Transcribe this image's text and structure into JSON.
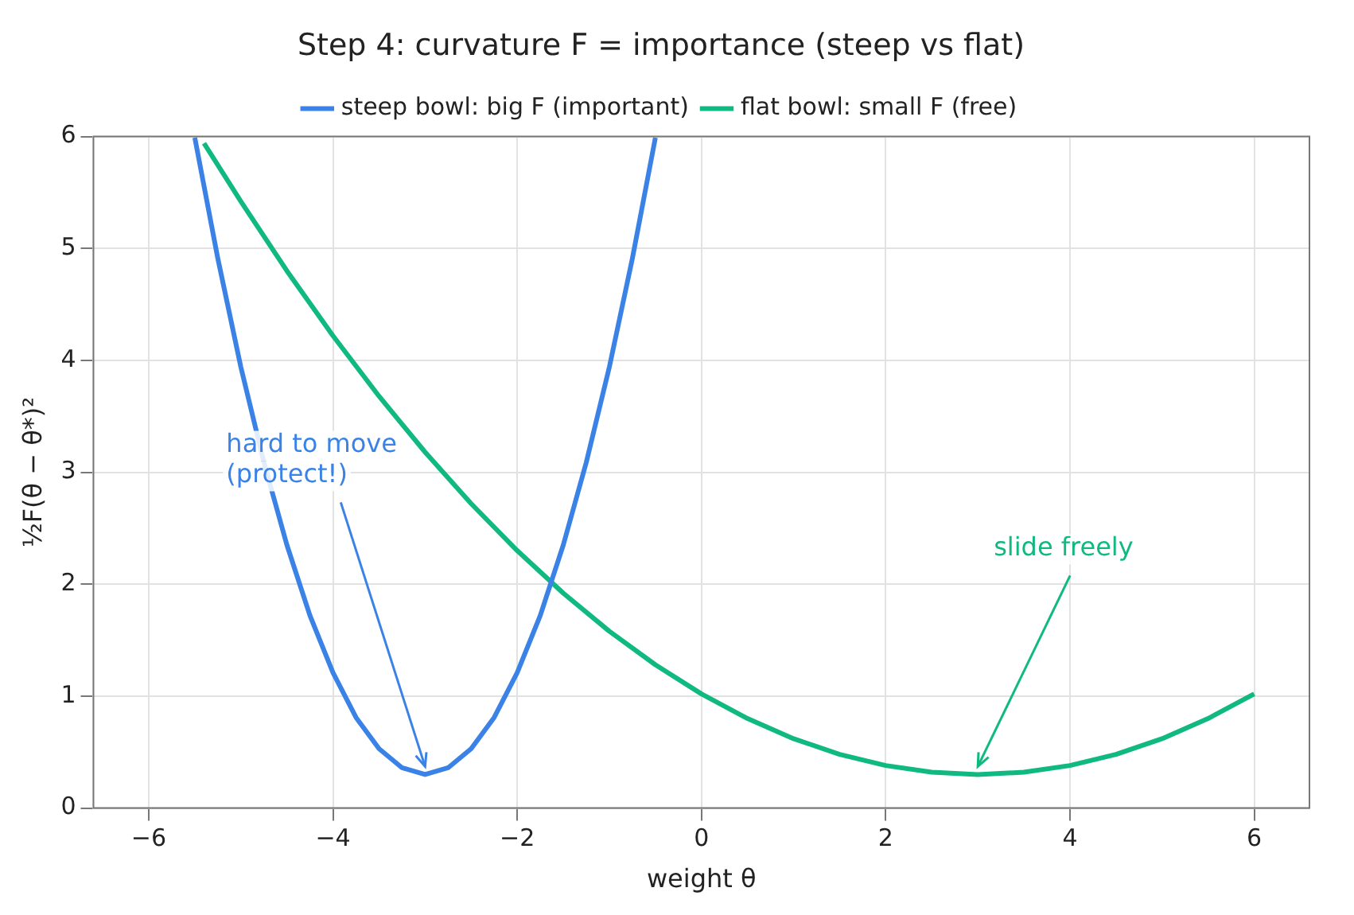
{
  "chart_data": {
    "type": "line",
    "title": "Step 4: curvature F = importance (steep vs flat)",
    "xlabel": "weight θ",
    "ylabel": "½F(θ − θ*)²",
    "series": [
      {
        "name": "steep bowl: big F (important)",
        "color": "#3b82e6",
        "x": [
          -5.5,
          -5.25,
          -5,
          -4.75,
          -4.5,
          -4.25,
          -4,
          -3.75,
          -3.5,
          -3.25,
          -3,
          -2.75,
          -2.5,
          -2.25,
          -2,
          -1.75,
          -1.5,
          -1.25,
          -1,
          -0.75,
          -0.5
        ],
        "values": [
          5.99,
          4.91,
          3.94,
          3.09,
          2.35,
          1.72,
          1.21,
          0.81,
          0.53,
          0.36,
          0.3,
          0.36,
          0.53,
          0.81,
          1.21,
          1.72,
          2.35,
          3.09,
          3.94,
          4.91,
          5.99
        ]
      },
      {
        "name": "flat bowl: small F (free)",
        "color": "#10b981",
        "x": [
          -5.4,
          -5,
          -4.5,
          -4,
          -3.5,
          -3,
          -2.5,
          -2,
          -1.5,
          -1,
          -0.5,
          0,
          0.5,
          1,
          1.5,
          2,
          2.5,
          3,
          3.5,
          4,
          4.5,
          5,
          5.5,
          6
        ],
        "values": [
          5.94,
          5.42,
          4.8,
          4.22,
          3.68,
          3.18,
          2.72,
          2.3,
          1.92,
          1.58,
          1.28,
          1.02,
          0.8,
          0.62,
          0.48,
          0.38,
          0.32,
          0.3,
          0.32,
          0.38,
          0.48,
          0.62,
          0.8,
          1.02
        ]
      }
    ],
    "annotations": [
      {
        "text": "hard to move\n(protect!)",
        "x": -3,
        "y": 0.3
      },
      {
        "text": "slide freely",
        "x": 3,
        "y": 0.3
      }
    ],
    "xlim": [
      -6.6,
      6.6
    ],
    "xticks": [
      -6,
      -4,
      -2,
      0,
      2,
      4,
      6
    ],
    "ylim": [
      0,
      6
    ],
    "yticks": [
      0,
      1,
      2,
      3,
      4,
      5,
      6
    ],
    "grid": true,
    "legend": "top",
    "marker": "none",
    "line_style": "solid"
  }
}
